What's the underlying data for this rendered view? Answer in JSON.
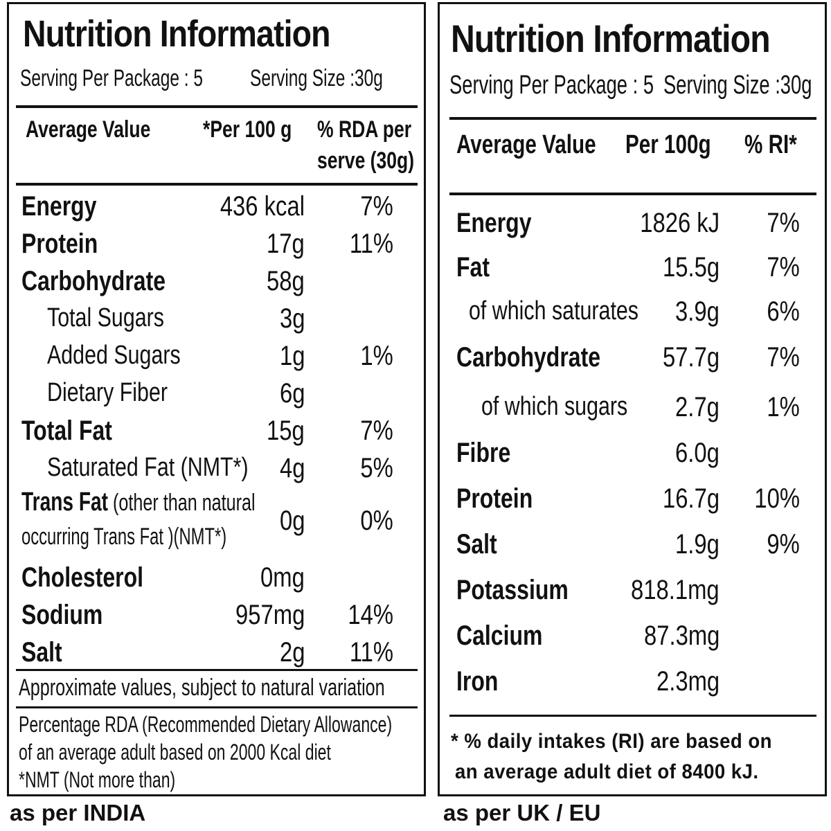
{
  "india": {
    "title": "Nutrition Information",
    "serving_per_package": "Serving Per Package : 5",
    "serving_size": "Serving Size :30g",
    "headers": {
      "average_value": "Average Value",
      "per_100": "*Per 100 g",
      "rda_line1": "% RDA per",
      "rda_line2": "serve (30g)"
    },
    "rows": [
      {
        "label": "Energy",
        "value": "436 kcal",
        "pct": "7%",
        "style": "main"
      },
      {
        "label": "Protein",
        "value": "17g",
        "pct": "11%",
        "style": "main"
      },
      {
        "label": "Carbohydrate",
        "value": "58g",
        "pct": "",
        "style": "main"
      },
      {
        "label": "Total Sugars",
        "value": "3g",
        "pct": "",
        "style": "sub"
      },
      {
        "label": "Added Sugars",
        "value": "1g",
        "pct": "1%",
        "style": "sub"
      },
      {
        "label": "Dietary Fiber",
        "value": "6g",
        "pct": "",
        "style": "sub"
      },
      {
        "label": "Total Fat",
        "value": "15g",
        "pct": "7%",
        "style": "main"
      },
      {
        "label": "Saturated Fat (NMT*)",
        "value": "4g",
        "pct": "5%",
        "style": "sub"
      }
    ],
    "trans_fat": {
      "label_bold": "Trans Fat",
      "label_rest": " (other than natural",
      "label_line2": "occurring Trans Fat )(NMT*)",
      "value": "0g",
      "pct": "0%"
    },
    "rows_after": [
      {
        "label": "Cholesterol",
        "value": "0mg",
        "pct": "",
        "style": "main"
      },
      {
        "label": "Sodium",
        "value": "957mg",
        "pct": "14%",
        "style": "main"
      },
      {
        "label": "Salt",
        "value": "2g",
        "pct": "11%",
        "style": "main"
      }
    ],
    "approx_note": "Approximate values, subject to natural variation",
    "rda_note_1": "Percentage RDA (Recommended Dietary Allowance)",
    "rda_note_2": "of an average adult based on 2000 Kcal diet",
    "rda_note_3": "*NMT (Not more than)",
    "caption": "as per  INDIA"
  },
  "uk": {
    "title": "Nutrition Information",
    "serving_per_package": "Serving Per Package : 5",
    "serving_size": "Serving Size :30g",
    "headers": {
      "average_value": "Average Value",
      "per_100": "Per 100g",
      "ri": "% RI*"
    },
    "rows": [
      {
        "label": "Energy",
        "value": "1826 kJ",
        "pct": "7%",
        "style": "main"
      },
      {
        "label": "Fat",
        "value": "15.5g",
        "pct": "7%",
        "style": "main"
      },
      {
        "label": "of which saturates",
        "value": "3.9g",
        "pct": "6%",
        "style": "sub"
      },
      {
        "label": "Carbohydrate",
        "value": "57.7g",
        "pct": "7%",
        "style": "main"
      },
      {
        "label": "of which sugars",
        "value": "2.7g",
        "pct": "1%",
        "style": "sub"
      },
      {
        "label": "Fibre",
        "value": "6.0g",
        "pct": "",
        "style": "main"
      },
      {
        "label": "Protein",
        "value": "16.7g",
        "pct": "10%",
        "style": "main"
      },
      {
        "label": "Salt",
        "value": "1.9g",
        "pct": "9%",
        "style": "main"
      },
      {
        "label": "Potassium",
        "value": "818.1mg",
        "pct": "",
        "style": "main"
      },
      {
        "label": "Calcium",
        "value": "87.3mg",
        "pct": "",
        "style": "main"
      },
      {
        "label": "Iron",
        "value": "2.3mg",
        "pct": "",
        "style": "main"
      }
    ],
    "ri_note_1": "* % daily intakes (RI) are based on",
    "ri_note_2": "an average adult diet of 8400 kJ.",
    "caption": "as per UK / EU"
  }
}
